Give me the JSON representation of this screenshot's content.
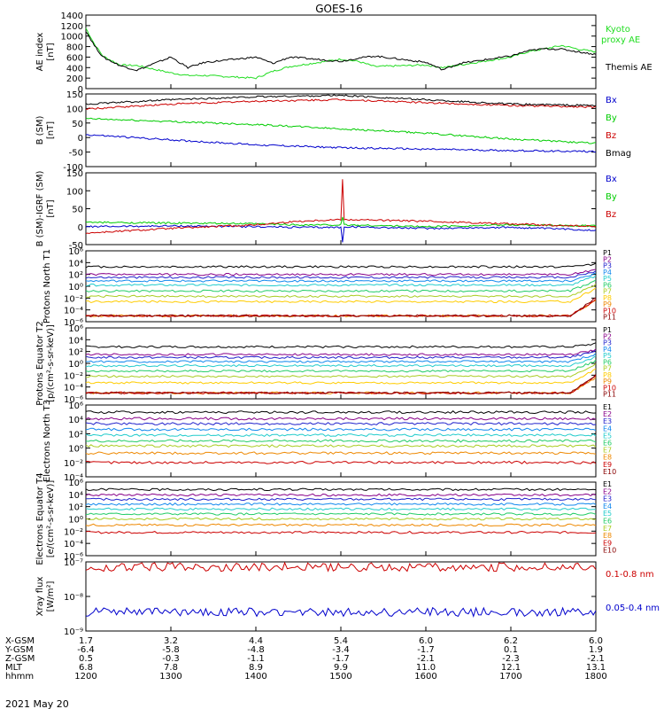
{
  "title": "GOES-16",
  "footer": {
    "date": "2021 May 20"
  },
  "x_axis": {
    "rows": [
      {
        "label": "X-GSM",
        "values": [
          "1.7",
          "3.2",
          "4.4",
          "5.4",
          "6.0",
          "6.2",
          "6.0"
        ]
      },
      {
        "label": "Y-GSM",
        "values": [
          "-6.4",
          "-5.8",
          "-4.8",
          "-3.4",
          "-1.7",
          "0.1",
          "1.9"
        ]
      },
      {
        "label": "Z-GSM",
        "values": [
          "0.5",
          "-0.3",
          "-1.1",
          "-1.7",
          "-2.1",
          "-2.3",
          "-2.1"
        ]
      },
      {
        "label": "MLT",
        "values": [
          "6.8",
          "7.8",
          "8.9",
          "9.9",
          "11.0",
          "12.1",
          "13.1"
        ]
      },
      {
        "label": "hhmm",
        "values": [
          "1200",
          "1300",
          "1400",
          "1500",
          "1600",
          "1700",
          "1800"
        ]
      }
    ]
  },
  "chart_data": [
    {
      "type": "line",
      "ylabel": "AE index [nT]",
      "ylim": [
        0,
        1400
      ],
      "yticks": [
        "0",
        "200",
        "400",
        "600",
        "800",
        "1000",
        "1200",
        "1400"
      ],
      "x": [
        1200,
        1800
      ],
      "series": [
        {
          "name": "Kyoto proxy AE",
          "color": "#22dd22",
          "x": [
            1200,
            1210,
            1220,
            1240,
            1260,
            1300,
            1320,
            1340,
            1400,
            1420,
            1440,
            1500,
            1520,
            1540,
            1600,
            1620,
            1640,
            1700,
            1720,
            1740,
            1760,
            1780,
            1800
          ],
          "values": [
            1150,
            850,
            620,
            450,
            440,
            300,
            250,
            250,
            200,
            330,
            420,
            560,
            520,
            420,
            450,
            400,
            450,
            600,
            700,
            760,
            820,
            750,
            700
          ]
        },
        {
          "name": "Themis AE",
          "color": "#000000",
          "x": [
            1200,
            1210,
            1220,
            1240,
            1260,
            1300,
            1320,
            1340,
            1400,
            1420,
            1440,
            1500,
            1520,
            1540,
            1600,
            1620,
            1640,
            1700,
            1720,
            1740,
            1760,
            1780,
            1800
          ],
          "values": [
            1100,
            820,
            600,
            440,
            350,
            600,
            400,
            500,
            600,
            480,
            600,
            520,
            580,
            620,
            500,
            360,
            480,
            620,
            720,
            760,
            750,
            700,
            650
          ]
        }
      ]
    },
    {
      "type": "line",
      "ylabel": "B (SM) [nT]",
      "ylim": [
        -100,
        150
      ],
      "yticks": [
        "-100",
        "-50",
        "0",
        "50",
        "100",
        "150"
      ],
      "series": [
        {
          "name": "Bx",
          "color": "#0000cc",
          "x": [
            1200,
            1300,
            1400,
            1500,
            1600,
            1700,
            1800
          ],
          "values": [
            10,
            -8,
            -25,
            -35,
            -40,
            -45,
            -48
          ]
        },
        {
          "name": "By",
          "color": "#00cc00",
          "x": [
            1200,
            1300,
            1400,
            1500,
            1600,
            1700,
            1800
          ],
          "values": [
            65,
            55,
            45,
            30,
            15,
            -5,
            -20
          ]
        },
        {
          "name": "Bz",
          "color": "#cc0000",
          "x": [
            1200,
            1300,
            1400,
            1500,
            1600,
            1700,
            1800
          ],
          "values": [
            98,
            115,
            125,
            130,
            120,
            110,
            105
          ]
        },
        {
          "name": "Bmag",
          "color": "#000000",
          "x": [
            1200,
            1300,
            1400,
            1500,
            1600,
            1700,
            1800
          ],
          "values": [
            115,
            130,
            140,
            145,
            130,
            115,
            110
          ]
        }
      ]
    },
    {
      "type": "line",
      "ylabel": "B (SM)-IGRF (SM) [nT]",
      "ylim": [
        -50,
        150
      ],
      "yticks": [
        "-50",
        "0",
        "50",
        "100",
        "150"
      ],
      "series": [
        {
          "name": "Bx",
          "color": "#0000cc",
          "x": [
            1200,
            1300,
            1400,
            1450,
            1500,
            1502,
            1504,
            1600,
            1700,
            1800
          ],
          "values": [
            0,
            2,
            0,
            -2,
            -2,
            -45,
            0,
            -5,
            -2,
            -10
          ]
        },
        {
          "name": "By",
          "color": "#00cc00",
          "x": [
            1200,
            1300,
            1400,
            1450,
            1500,
            1502,
            1504,
            1600,
            1700,
            1800
          ],
          "values": [
            12,
            10,
            8,
            5,
            5,
            25,
            5,
            0,
            5,
            2
          ]
        },
        {
          "name": "Bz",
          "color": "#cc0000",
          "x": [
            1200,
            1300,
            1400,
            1450,
            1500,
            1502,
            1504,
            1600,
            1700,
            1800
          ],
          "values": [
            -18,
            -5,
            5,
            15,
            20,
            130,
            20,
            15,
            8,
            0
          ]
        }
      ]
    },
    {
      "type": "line",
      "ylabel": "Protons North T1",
      "log": true,
      "ylim": [
        1e-06,
        1000000.0
      ],
      "yticks": [
        "10⁻⁶",
        "10⁻⁴",
        "10⁻²",
        "10⁰",
        "10²",
        "10⁴",
        "10⁶"
      ],
      "series": [
        {
          "name": "P1",
          "color": "#000000",
          "level": 3.3
        },
        {
          "name": "P2",
          "color": "#880088",
          "level": 2.0
        },
        {
          "name": "P3",
          "color": "#2222cc",
          "level": 1.5
        },
        {
          "name": "P4",
          "color": "#1188ee",
          "level": 0.9
        },
        {
          "name": "P5",
          "color": "#22cccc",
          "level": 0.2
        },
        {
          "name": "P6",
          "color": "#22cc66",
          "level": -0.8
        },
        {
          "name": "P7",
          "color": "#aacc22",
          "level": -1.7
        },
        {
          "name": "P8",
          "color": "#ffcc00",
          "level": -2.6
        },
        {
          "name": "P9",
          "color": "#ee8800",
          "level": -5
        },
        {
          "name": "P10",
          "color": "#cc0000",
          "level": -5
        },
        {
          "name": "P11",
          "color": "#880000",
          "level": -5
        }
      ]
    },
    {
      "type": "line",
      "ylabel": "Protons Equator T2 [p/(cm²-s-sr-keV)]",
      "log": true,
      "ylim": [
        1e-06,
        1000000.0
      ],
      "yticks": [
        "10⁻⁶",
        "10⁻⁴",
        "10⁻²",
        "10⁰",
        "10²",
        "10⁴",
        "10⁶"
      ],
      "series": [
        {
          "name": "P1",
          "color": "#000000",
          "level": 2.8
        },
        {
          "name": "P2",
          "color": "#880088",
          "level": 1.5
        },
        {
          "name": "P3",
          "color": "#2222cc",
          "level": 1.0
        },
        {
          "name": "P4",
          "color": "#1188ee",
          "level": 0.3
        },
        {
          "name": "P5",
          "color": "#22cccc",
          "level": -0.4
        },
        {
          "name": "P6",
          "color": "#22cc66",
          "level": -1.3
        },
        {
          "name": "P7",
          "color": "#aacc22",
          "level": -2.2
        },
        {
          "name": "P8",
          "color": "#ffcc00",
          "level": -3.3
        },
        {
          "name": "P9",
          "color": "#ee8800",
          "level": -5
        },
        {
          "name": "P10",
          "color": "#cc0000",
          "level": -5
        },
        {
          "name": "P11",
          "color": "#880000",
          "level": -5
        }
      ]
    },
    {
      "type": "line",
      "ylabel": "Electrons North T3",
      "log": true,
      "ylim": [
        0.0001,
        1000000.0
      ],
      "yticks": [
        "10⁻⁴",
        "10⁻²",
        "10⁰",
        "10²",
        "10⁴",
        "10⁶"
      ],
      "series": [
        {
          "name": "E1",
          "color": "#000000",
          "level": 5.0
        },
        {
          "name": "E2",
          "color": "#880088",
          "level": 4.1
        },
        {
          "name": "E3",
          "color": "#2222cc",
          "level": 3.4
        },
        {
          "name": "E4",
          "color": "#1188ee",
          "level": 2.6
        },
        {
          "name": "E5",
          "color": "#22cccc",
          "level": 1.8
        },
        {
          "name": "E6",
          "color": "#22cc66",
          "level": 1.0
        },
        {
          "name": "E7",
          "color": "#aacc22",
          "level": 0.3
        },
        {
          "name": "E8",
          "color": "#ee8800",
          "level": -0.7
        },
        {
          "name": "E9",
          "color": "#cc0000",
          "level": -2.0
        },
        {
          "name": "E10",
          "color": "#880000",
          "level": -5
        }
      ]
    },
    {
      "type": "line",
      "ylabel": "Electrons Equator T4 [e/(cm²-s-sr-keV)]",
      "log": true,
      "ylim": [
        1e-06,
        1000000.0
      ],
      "yticks": [
        "10⁻⁶",
        "10⁻⁴",
        "10⁻²",
        "10⁰",
        "10²",
        "10⁴",
        "10⁶"
      ],
      "series": [
        {
          "name": "E1",
          "color": "#000000",
          "level": 4.8
        },
        {
          "name": "E2",
          "color": "#880088",
          "level": 3.9
        },
        {
          "name": "E3",
          "color": "#2222cc",
          "level": 3.2
        },
        {
          "name": "E4",
          "color": "#1188ee",
          "level": 2.4
        },
        {
          "name": "E5",
          "color": "#22cccc",
          "level": 1.6
        },
        {
          "name": "E6",
          "color": "#22cc66",
          "level": 0.8
        },
        {
          "name": "E7",
          "color": "#aacc22",
          "level": 0.0
        },
        {
          "name": "E8",
          "color": "#ee8800",
          "level": -1.0
        },
        {
          "name": "E9",
          "color": "#cc0000",
          "level": -2.2
        },
        {
          "name": "E10",
          "color": "#880000",
          "level": -7
        }
      ]
    },
    {
      "type": "line",
      "ylabel": "Xray flux [W/m²]",
      "log": true,
      "ylim": [
        1e-09,
        1e-07
      ],
      "yticks": [
        "10⁻⁹",
        "10⁻⁸",
        "10⁻⁷"
      ],
      "series": [
        {
          "name": "0.1-0.8 nm",
          "color": "#cc0000",
          "level": -7.15
        },
        {
          "name": "0.05-0.4 nm",
          "color": "#0000cc",
          "level": -8.45
        }
      ]
    }
  ]
}
